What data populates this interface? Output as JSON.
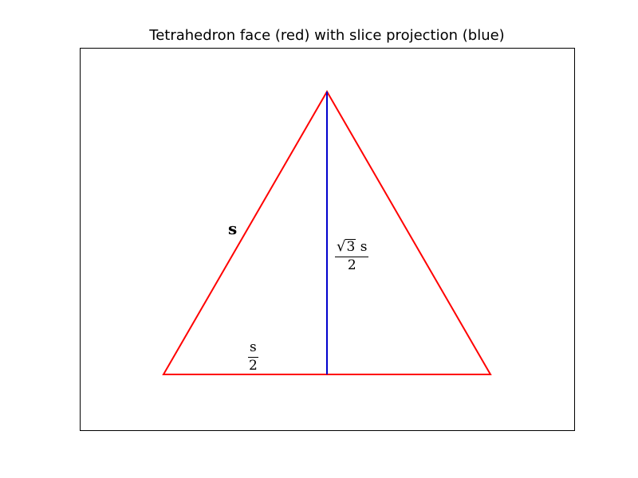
{
  "title": "Tetrahedron face (red) with slice projection (blue)",
  "labels": {
    "side": "s",
    "half_base_num": "s",
    "half_base_den": "2",
    "height_sqrt_sign": "√",
    "height_radicand": "3",
    "height_num_var": "s",
    "height_den": "2"
  },
  "colors": {
    "face": "#ff0000",
    "slice": "#0000cc",
    "axes": "#000000"
  }
}
